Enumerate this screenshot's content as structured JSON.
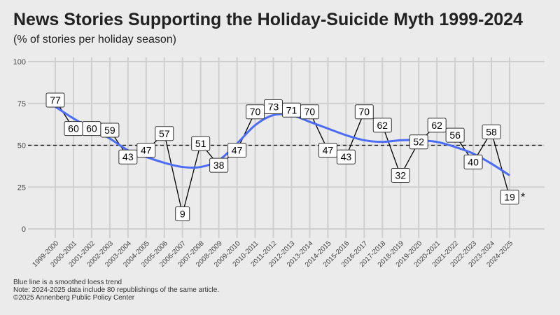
{
  "chart_data": {
    "type": "line",
    "title": "News Stories Supporting the Holiday-Suicide Myth 1999-2024",
    "subtitle": "(% of stories per holiday season)",
    "xlabel": "",
    "ylabel": "",
    "ylim": [
      0,
      100
    ],
    "yticks": [
      0,
      25,
      50,
      75,
      100
    ],
    "reference_line": 50,
    "categories": [
      "1999-2000",
      "2000-2001",
      "2001-2002",
      "2002-2003",
      "2003-2004",
      "2004-2005",
      "2005-2006",
      "2006-2007",
      "2007-2008",
      "2008-2009",
      "2009-2010",
      "2010-2011",
      "2011-2012",
      "2012-2013",
      "2013-2014",
      "2014-2015",
      "2015-2016",
      "2016-2017",
      "2017-2018",
      "2018-2019",
      "2019-2020",
      "2020-2021",
      "2021-2022",
      "2022-2023",
      "2023-2024",
      "2024-2025"
    ],
    "series": [
      {
        "name": "% of stories",
        "color": "#000000",
        "values": [
          77,
          60,
          60,
          59,
          43,
          47,
          57,
          9,
          51,
          38,
          47,
          70,
          73,
          71,
          70,
          47,
          43,
          70,
          62,
          32,
          52,
          62,
          56,
          40,
          58,
          19
        ]
      },
      {
        "name": "Smoothed loess trend",
        "color": "#4a6cf7",
        "values": [
          73,
          66,
          60,
          54,
          47,
          43,
          39.5,
          37,
          37,
          41,
          51,
          62,
          68,
          68,
          64,
          60,
          56,
          53,
          52,
          53,
          53,
          52,
          49,
          45,
          39,
          32
        ]
      }
    ],
    "annotation": "*",
    "grid": true
  },
  "notes": [
    "Blue line is a smoothed loess trend",
    "Note: 2024-2025 data include 80 republishings of the same article.",
    "©2025 Annenberg Public Policy Center"
  ]
}
